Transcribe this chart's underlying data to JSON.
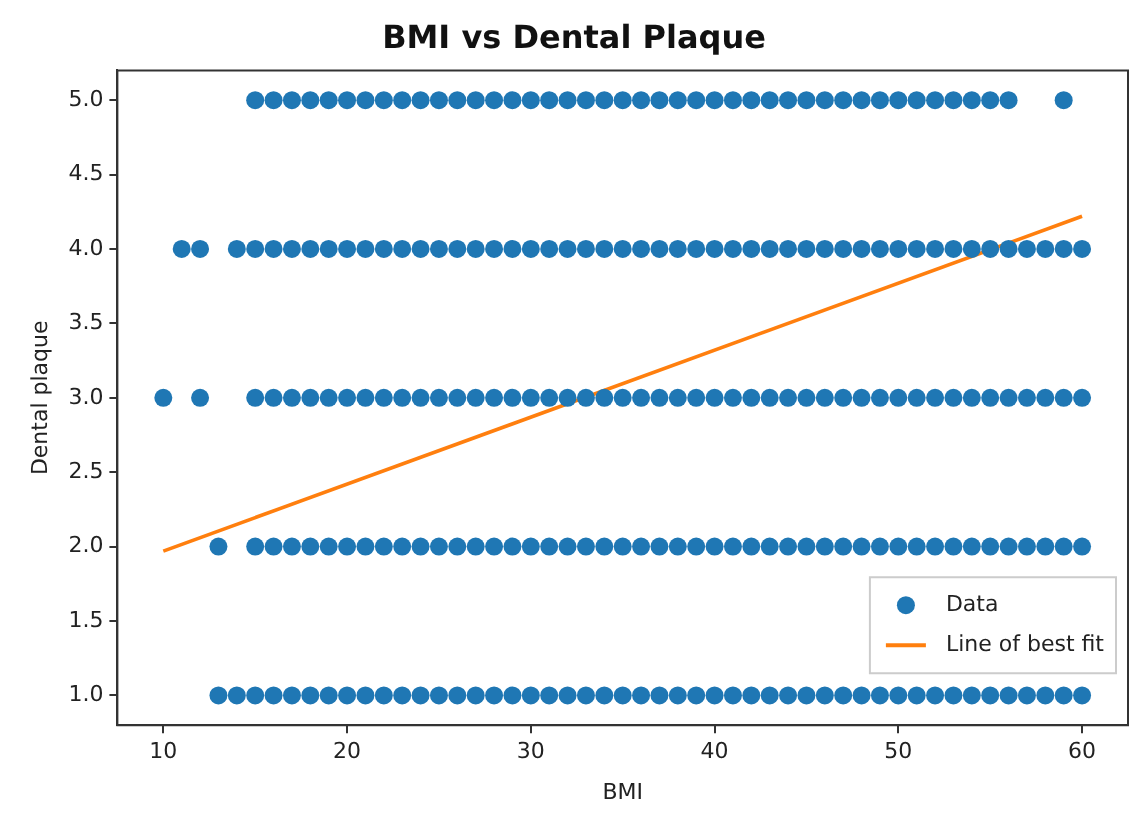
{
  "chart_data": {
    "type": "scatter",
    "title": "BMI vs Dental Plaque",
    "xlabel": "BMI",
    "ylabel": "Dental plaque",
    "xlim": [
      7.5,
      62.5
    ],
    "ylim": [
      0.8,
      5.2
    ],
    "xticks": [
      10,
      20,
      30,
      40,
      50,
      60
    ],
    "yticks": [
      {
        "value": 1,
        "label": "1.0"
      },
      {
        "value": 1.5,
        "label": "1.5"
      },
      {
        "value": 2,
        "label": "2.0"
      },
      {
        "value": 2.5,
        "label": "2.5"
      },
      {
        "value": 3,
        "label": "3.0"
      },
      {
        "value": 3.5,
        "label": "3.5"
      },
      {
        "value": 4,
        "label": "4.0"
      },
      {
        "value": 4.5,
        "label": "4.5"
      },
      {
        "value": 5,
        "label": "5.0"
      }
    ],
    "legend": "lower right",
    "series": [
      {
        "name": "Data",
        "type": "scatter",
        "marker": "circle",
        "color": "#1f77b4",
        "x": [
          15,
          16,
          17,
          18,
          19,
          20,
          21,
          22,
          23,
          24,
          25,
          26,
          27,
          28,
          29,
          30,
          31,
          32,
          33,
          34,
          35,
          36,
          37,
          38,
          39,
          40,
          41,
          42,
          43,
          44,
          45,
          46,
          47,
          48,
          49,
          50,
          51,
          52,
          53,
          54,
          55,
          56,
          59,
          11,
          12,
          14,
          15,
          16,
          17,
          18,
          19,
          20,
          21,
          22,
          23,
          24,
          25,
          26,
          27,
          28,
          29,
          30,
          31,
          32,
          33,
          34,
          35,
          36,
          37,
          38,
          39,
          40,
          41,
          42,
          43,
          44,
          45,
          46,
          47,
          48,
          49,
          50,
          51,
          52,
          53,
          54,
          55,
          56,
          57,
          58,
          59,
          60,
          10,
          12,
          15,
          16,
          17,
          18,
          19,
          20,
          21,
          22,
          23,
          24,
          25,
          26,
          27,
          28,
          29,
          30,
          31,
          32,
          33,
          34,
          35,
          36,
          37,
          38,
          39,
          40,
          41,
          42,
          43,
          44,
          45,
          46,
          47,
          48,
          49,
          50,
          51,
          52,
          53,
          54,
          55,
          56,
          57,
          58,
          59,
          60,
          13,
          15,
          16,
          17,
          18,
          19,
          20,
          21,
          22,
          23,
          24,
          25,
          26,
          27,
          28,
          29,
          30,
          31,
          32,
          33,
          34,
          35,
          36,
          37,
          38,
          39,
          40,
          41,
          42,
          43,
          44,
          45,
          46,
          47,
          48,
          49,
          50,
          51,
          52,
          53,
          54,
          55,
          56,
          57,
          58,
          59,
          60,
          13,
          14,
          15,
          16,
          17,
          18,
          19,
          20,
          21,
          22,
          23,
          24,
          25,
          26,
          27,
          28,
          29,
          30,
          31,
          32,
          33,
          34,
          35,
          36,
          37,
          38,
          39,
          40,
          41,
          42,
          43,
          44,
          45,
          46,
          47,
          48,
          49,
          50,
          51,
          52,
          53,
          54,
          55,
          56,
          57,
          58,
          59,
          60
        ],
        "values": [
          5,
          5,
          5,
          5,
          5,
          5,
          5,
          5,
          5,
          5,
          5,
          5,
          5,
          5,
          5,
          5,
          5,
          5,
          5,
          5,
          5,
          5,
          5,
          5,
          5,
          5,
          5,
          5,
          5,
          5,
          5,
          5,
          5,
          5,
          5,
          5,
          5,
          5,
          5,
          5,
          5,
          5,
          5,
          4,
          4,
          4,
          4,
          4,
          4,
          4,
          4,
          4,
          4,
          4,
          4,
          4,
          4,
          4,
          4,
          4,
          4,
          4,
          4,
          4,
          4,
          4,
          4,
          4,
          4,
          4,
          4,
          4,
          4,
          4,
          4,
          4,
          4,
          4,
          4,
          4,
          4,
          4,
          4,
          4,
          4,
          4,
          4,
          4,
          4,
          4,
          4,
          4,
          3,
          3,
          3,
          3,
          3,
          3,
          3,
          3,
          3,
          3,
          3,
          3,
          3,
          3,
          3,
          3,
          3,
          3,
          3,
          3,
          3,
          3,
          3,
          3,
          3,
          3,
          3,
          3,
          3,
          3,
          3,
          3,
          3,
          3,
          3,
          3,
          3,
          3,
          3,
          3,
          3,
          3,
          3,
          3,
          3,
          3,
          3,
          3,
          2,
          2,
          2,
          2,
          2,
          2,
          2,
          2,
          2,
          2,
          2,
          2,
          2,
          2,
          2,
          2,
          2,
          2,
          2,
          2,
          2,
          2,
          2,
          2,
          2,
          2,
          2,
          2,
          2,
          2,
          2,
          2,
          2,
          2,
          2,
          2,
          2,
          2,
          2,
          2,
          2,
          2,
          2,
          2,
          2,
          2,
          2,
          1,
          1,
          1,
          1,
          1,
          1,
          1,
          1,
          1,
          1,
          1,
          1,
          1,
          1,
          1,
          1,
          1,
          1,
          1,
          1,
          1,
          1,
          1,
          1,
          1,
          1,
          1,
          1,
          1,
          1,
          1,
          1,
          1,
          1,
          1,
          1,
          1,
          1,
          1,
          1,
          1,
          1,
          1,
          1,
          1,
          1,
          1,
          1
        ]
      },
      {
        "name": "Line of best fit",
        "type": "line",
        "marker": "none",
        "color": "#ff7f0e",
        "x": [
          10,
          60
        ],
        "values": [
          1.97,
          4.22
        ]
      }
    ]
  }
}
